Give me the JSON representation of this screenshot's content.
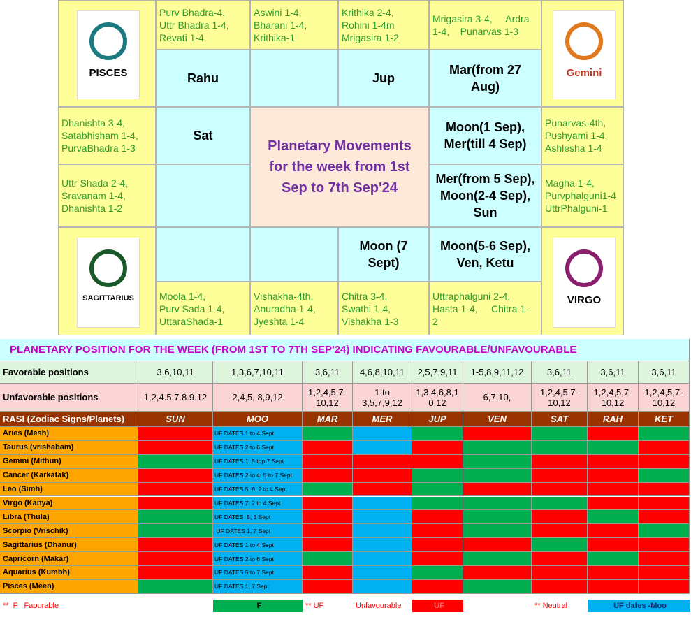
{
  "rasi_chart": {
    "title": [
      "Planetary Movements",
      "for the week from 1st",
      "Sep to 7th Sep'24"
    ],
    "corners": {
      "pisces": "PISCES",
      "gemini": "Gemini",
      "sagittarius": "SAGITTARIUS",
      "virgo": "VIRGO"
    },
    "houses": [
      {
        "stars": [
          "Purv Bhadra-4,",
          "Uttr Bhadra 1-4,",
          "Revati 1-4"
        ],
        "planets": [
          "Rahu"
        ]
      },
      {
        "stars": [
          "Aswini 1-4,",
          "Bharani 1-4,",
          "Krithika-1"
        ]
      },
      {
        "stars": [
          "Krithika 2-4,",
          "Rohini 1-4m",
          "Mrigasira 1-2"
        ],
        "planets": [
          "Jup"
        ]
      },
      {
        "stars": [
          "Mrigasira 3-4,     Ardra",
          "1-4,    Punarvas 1-3"
        ],
        "planets": [
          "Mar(from 27",
          "Aug)"
        ]
      },
      {
        "stars": [
          "Punarvas-4th,",
          "Pushyami 1-4,",
          "Ashlesha 1-4"
        ],
        "planets": [
          "Moon(1 Sep),",
          "Mer(till 4 Sep)"
        ]
      },
      {
        "stars": [
          "Magha 1-4,",
          "Purvphalguni1-4",
          "UttrPhalguni-1"
        ],
        "planets": [
          "Mer(from 5 Sep),",
          "Moon(2-4 Sep),",
          "Sun"
        ]
      },
      {
        "stars": [
          "Uttraphalguni 2-4,",
          "Hasta 1-4,     Chitra 1-",
          "2"
        ],
        "planets": [
          "Moon(5-6 Sep),",
          "Ven, Ketu"
        ]
      },
      {
        "stars": [
          "Chitra 3-4,",
          "Swathi 1-4,",
          "Vishakha 1-3"
        ],
        "planets": [
          "Moon (7",
          "Sept)"
        ]
      },
      {
        "stars": [
          "Vishakha-4th,",
          "Anuradha 1-4,",
          "Jyeshta 1-4"
        ]
      },
      {
        "stars": [
          "Moola 1-4,",
          "Purv Sada 1-4,",
          "UttaraShada-1"
        ]
      },
      {
        "stars": [
          "Uttr Shada 2-4,",
          "Sravanam 1-4,",
          "Dhanishta 1-2"
        ]
      },
      {
        "stars": [
          "Dhanishta 3-4,",
          "Satabhisham 1-4,",
          "PurvaBhadra 1-3"
        ],
        "planets": [
          "Sat"
        ]
      }
    ]
  },
  "planetary_table": {
    "title": "PLANETARY POSITION FOR THE WEEK (FROM 1ST TO 7TH SEP'24) INDICATING FAVOURABLE/UNFAVOURABLE",
    "favorable": {
      "label": "Favorable positions",
      "values": [
        "3,6,10,11",
        "1,3,6,7,10,11",
        "3,6,11",
        "4,6,8,10,11",
        "2,5,7,9,11",
        "1-5,8,9,11,12",
        "3,6,11",
        "3,6,11",
        "3,6,11"
      ]
    },
    "unfavorable": {
      "label": "Unfavorable positions",
      "values": [
        "1,2,4.5.7.8.9.12",
        "2,4,5, 8,9,12",
        "1,2,4,5,7-10,12",
        "1 to 3,5,7,9,12",
        "1,3,4,6,8,10,12",
        "6,7,10,",
        "1,2,4,5,7-10,12",
        "1,2,4,5,7-10,12",
        "1,2,4,5,7-10,12"
      ]
    },
    "header_label": "RASI (Zodiac Signs/Planets)",
    "planets": [
      "SUN",
      "MOO",
      "MAR",
      "MER",
      "JUP",
      "VEN",
      "SAT",
      "RAH",
      "KET"
    ],
    "rows": [
      {
        "sign": "Aries (Mesh)",
        "moon_note": "UF DATES 1 to 4 Sept",
        "colors": [
          "#ff0000",
          "#00b0f0",
          "#00b050",
          "#00b0f0",
          "#00b050",
          "#ff0000",
          "#00b050",
          "#ff0000",
          "#00b050"
        ]
      },
      {
        "sign": "Taurus (vrishabam)",
        "moon_note": "UF DATES 2 to 6 Sept",
        "colors": [
          "#ff0000",
          "#00b0f0",
          "#ff0000",
          "#00b0f0",
          "#ff0000",
          "#00b050",
          "#00b050",
          "#00b050",
          "#ff0000"
        ]
      },
      {
        "sign": "Gemini (Mithun)",
        "moon_note": "UF DATES 1, 5 top 7 Sept",
        "colors": [
          "#00b050",
          "#00b0f0",
          "#ff0000",
          "#ff0000",
          "#ff0000",
          "#00b050",
          "#ff0000",
          "#ff0000",
          "#ff0000"
        ]
      },
      {
        "sign": "Cancer (Karkatak)",
        "moon_note": "UF DATES 2 to 4, 5 to 7 Sept",
        "colors": [
          "#ff0000",
          "#00b0f0",
          "#ff0000",
          "#ff0000",
          "#00b050",
          "#00b050",
          "#ff0000",
          "#ff0000",
          "#00b050"
        ]
      },
      {
        "sign": "Leo (Simh)",
        "moon_note": "UF DATES 5, 6, 2 to 4 Sept",
        "colors": [
          "#ff0000",
          "#00b0f0",
          "#00b050",
          "#ff0000",
          "#00b050",
          "#ff0000",
          "#ff0000",
          "#ff0000",
          "#ff0000"
        ]
      },
      {
        "sign": "Virgo (Kanya)",
        "moon_note": "UF DATES 7, 2 to 4 Sept",
        "colors": [
          "#ff0000",
          "#00b0f0",
          "#ff0000",
          "#00b0f0",
          "#00b050",
          "#00b050",
          "#00b050",
          "#ff0000",
          "#ff0000"
        ]
      },
      {
        "sign": "Libra (Thula)",
        "moon_note": "UF DATES  5, 6 Sept",
        "colors": [
          "#00b050",
          "#00b0f0",
          "#ff0000",
          "#00b0f0",
          "#ff0000",
          "#00b050",
          "#ff0000",
          "#00b050",
          "#ff0000"
        ]
      },
      {
        "sign": "Scorpio (Vrischik)",
        "moon_note": " UF DATES 1, 7 Sept",
        "colors": [
          "#00b050",
          "#00b0f0",
          "#ff0000",
          "#00b0f0",
          "#ff0000",
          "#00b050",
          "#ff0000",
          "#ff0000",
          "#00b050"
        ]
      },
      {
        "sign": "Sagittarius (Dhanur)",
        "moon_note": "UF DATES 1 to 4 Sept",
        "colors": [
          "#ff0000",
          "#00b0f0",
          "#ff0000",
          "#00b0f0",
          "#ff0000",
          "#ff0000",
          "#00b050",
          "#ff0000",
          "#ff0000"
        ]
      },
      {
        "sign": "Capricorn (Makar)",
        "moon_note": "UF DATES 2 to 6 Sept",
        "colors": [
          "#ff0000",
          "#00b0f0",
          "#00b050",
          "#00b0f0",
          "#ff0000",
          "#00b050",
          "#ff0000",
          "#00b050",
          "#ff0000"
        ]
      },
      {
        "sign": "Aquarius (Kumbh)",
        "moon_note": "UF DATES 5 to 7 Sept",
        "colors": [
          "#ff0000",
          "#00b0f0",
          "#ff0000",
          "#00b0f0",
          "#00b050",
          "#ff0000",
          "#ff0000",
          "#ff0000",
          "#ff0000"
        ]
      },
      {
        "sign": "Pisces (Meen)",
        "moon_note": "UF DATES 1, 7 Sept",
        "colors": [
          "#00b050",
          "#00b0f0",
          "#ff0000",
          "#00b0f0",
          "#ff0000",
          "#00b050",
          "#ff0000",
          "#ff0000",
          "#ff0000"
        ]
      }
    ],
    "legend": [
      {
        "text": "**  F   Faourable"
      },
      {
        "text": "F",
        "color": "#00b050"
      },
      {
        "text": "** UF"
      },
      {
        "text": "Unfavourable"
      },
      {
        "text": "UF",
        "color": "#ff0000"
      },
      {
        "text": "** Neutral"
      },
      {
        "text": "UF dates -Moo",
        "color": "#00b0f0"
      }
    ]
  }
}
